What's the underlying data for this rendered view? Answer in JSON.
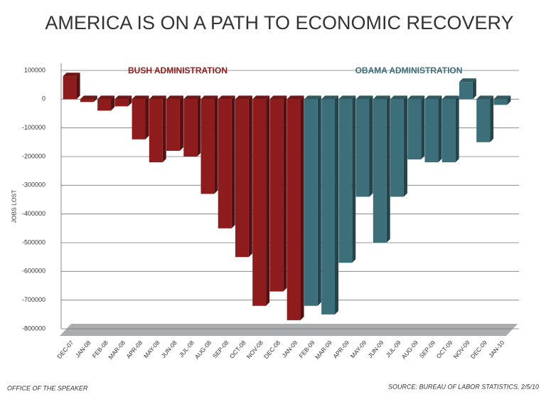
{
  "chart_data": {
    "type": "bar",
    "title": "AMERICA IS ON A PATH TO ECONOMIC RECOVERY",
    "y_label": "JOBS LOST",
    "categories": [
      "DEC-07",
      "JAN-08",
      "FEB-08",
      "MAR-08",
      "APR-08",
      "MAY-08",
      "JUN-08",
      "JUL-08",
      "AUG-08",
      "SEP-08",
      "OCT-08",
      "NOV-08",
      "DEC-08",
      "JAN-09",
      "FEB-09",
      "MAR-09",
      "APR-09",
      "MAY-09",
      "JUN-09",
      "JUL-09",
      "AUG-09",
      "SEP-09",
      "OCT-09",
      "NOV-09",
      "DEC-09",
      "JAN-10"
    ],
    "series": [
      {
        "name": "BUSH ADMINISTRATION",
        "color": "#8e1c1c",
        "values": [
          80000,
          -10000,
          -40000,
          -25000,
          -140000,
          -220000,
          -180000,
          -200000,
          -330000,
          -450000,
          -550000,
          -720000,
          -670000,
          -770000,
          null,
          null,
          null,
          null,
          null,
          null,
          null,
          null,
          null,
          null,
          null,
          null
        ]
      },
      {
        "name": "OBAMA ADMINISTRATION",
        "color": "#3d6f7b",
        "values": [
          null,
          null,
          null,
          null,
          null,
          null,
          null,
          null,
          null,
          null,
          null,
          null,
          null,
          null,
          -720000,
          -750000,
          -570000,
          -340000,
          -500000,
          -340000,
          -210000,
          -220000,
          -220000,
          60000,
          -150000,
          -20000
        ]
      }
    ],
    "ylim": [
      -800000,
      100000
    ],
    "yticks": [
      100000,
      0,
      -100000,
      -200000,
      -300000,
      -400000,
      -500000,
      -600000,
      -700000,
      -800000
    ],
    "grid": true,
    "footer_left": "OFFICE OF THE SPEAKER",
    "source": "SOURCE: BUREAU OF LABOR STATISTICS, 2/5/10"
  }
}
